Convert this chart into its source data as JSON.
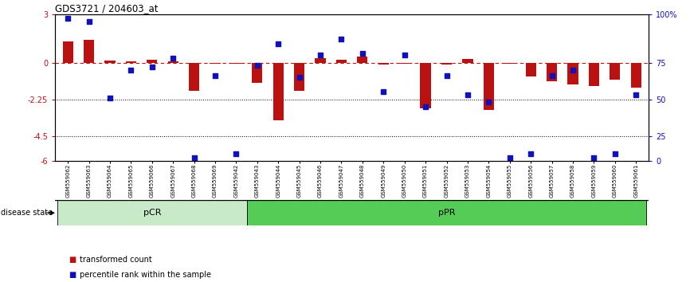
{
  "title": "GDS3721 / 204603_at",
  "samples": [
    "GSM559062",
    "GSM559063",
    "GSM559064",
    "GSM559065",
    "GSM559066",
    "GSM559067",
    "GSM559068",
    "GSM559069",
    "GSM559042",
    "GSM559043",
    "GSM559044",
    "GSM559045",
    "GSM559046",
    "GSM559047",
    "GSM559048",
    "GSM559049",
    "GSM559050",
    "GSM559051",
    "GSM559052",
    "GSM559053",
    "GSM559054",
    "GSM559055",
    "GSM559056",
    "GSM559057",
    "GSM559058",
    "GSM559059",
    "GSM559060",
    "GSM559061"
  ],
  "bar_values": [
    1.3,
    1.4,
    0.15,
    0.1,
    0.2,
    0.1,
    -1.7,
    -0.05,
    -0.05,
    -1.2,
    -3.5,
    -1.7,
    0.3,
    0.2,
    0.4,
    -0.1,
    -0.05,
    -2.8,
    -0.1,
    0.25,
    -2.9,
    -0.05,
    -0.85,
    -1.1,
    -1.3,
    -1.4,
    -1.0,
    -1.5
  ],
  "dot_values": [
    97,
    95,
    43,
    62,
    64,
    70,
    2,
    58,
    5,
    65,
    80,
    57,
    72,
    83,
    73,
    47,
    72,
    37,
    58,
    45,
    40,
    2,
    5,
    58,
    62,
    2,
    5,
    45
  ],
  "pCR_count": 9,
  "pPR_count": 19,
  "ylim_min": -6,
  "ylim_max": 3,
  "y_ticks_left": [
    3,
    0,
    -2.25,
    -4.5,
    -6
  ],
  "y_ticks_left_labels": [
    "3",
    "0",
    "-2.25",
    "-4.5",
    "-6"
  ],
  "y_ticks_right_vals": [
    3,
    0,
    -2.25,
    -4.5,
    -6
  ],
  "y_ticks_right_labels": [
    "100%",
    "75",
    "50",
    "25",
    "0"
  ],
  "hline_y": 0,
  "dotted_lines": [
    -2.25,
    -4.5
  ],
  "bar_color": "#bb1111",
  "dot_color": "#1111bb",
  "pCR_color": "#c8eac8",
  "pPR_color": "#55cc55",
  "disease_state_label": "disease state",
  "legend_bar": "transformed count",
  "legend_dot": "percentile rank within the sample",
  "bar_width": 0.5,
  "fig_width": 8.66,
  "fig_height": 3.54
}
